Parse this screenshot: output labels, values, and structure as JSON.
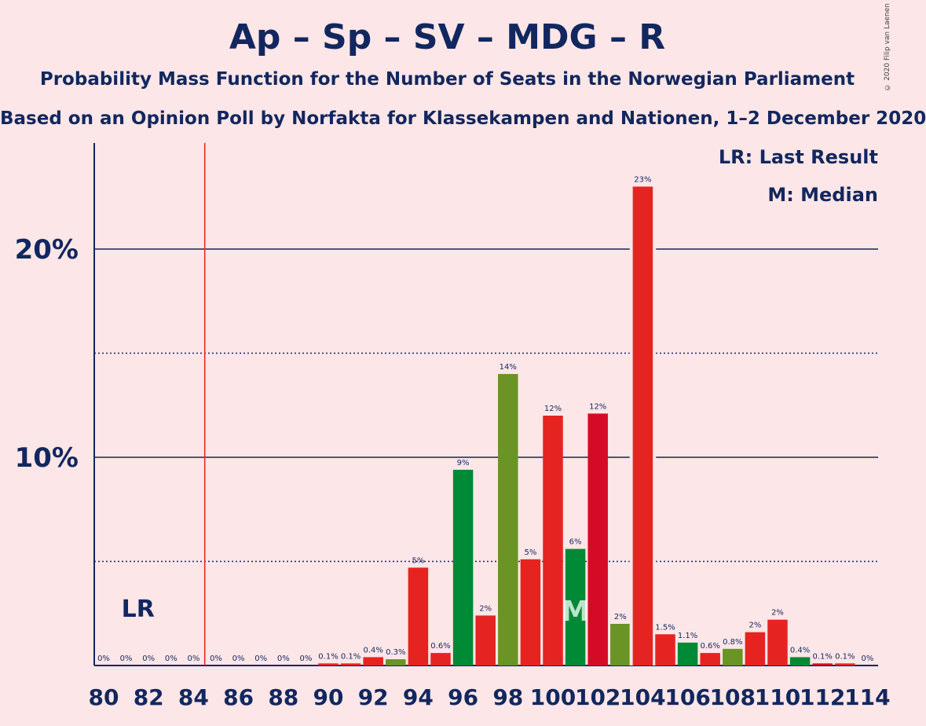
{
  "title": "Ap – Sp – SV – MDG – R",
  "subtitle": "Probability Mass Function for the Number of Seats in the Norwegian Parliament",
  "subtitle2": "Based on an Opinion Poll by Norfakta for Klassekampen and Nationen, 1–2 December 2020",
  "copyright": "© 2020 Filip van Laenen",
  "legend": {
    "lr": "LR: Last Result",
    "m": "M: Median"
  },
  "colors": {
    "background": "#fde6e7",
    "text": "#12275f",
    "red": "#e52421",
    "green": "#008a35",
    "olive": "#6a9426",
    "darkred": "#d50b25"
  },
  "chart_data": {
    "type": "bar",
    "ylabel": "",
    "xlabel": "",
    "ylim": [
      0,
      25
    ],
    "yticks": [
      10,
      20
    ],
    "ytick_labels": [
      "10%",
      "20%"
    ],
    "dotted_gridlines": [
      5,
      15
    ],
    "last_result": 85,
    "last_result_label": "LR",
    "median": 101,
    "median_label": "M",
    "x_tick_labels": [
      "80",
      "82",
      "84",
      "86",
      "88",
      "90",
      "92",
      "94",
      "96",
      "98",
      "100",
      "102",
      "104",
      "106",
      "108",
      "110",
      "112",
      "114"
    ],
    "seats": [
      80,
      81,
      82,
      83,
      84,
      85,
      86,
      87,
      88,
      89,
      90,
      91,
      92,
      93,
      94,
      95,
      96,
      97,
      98,
      99,
      100,
      101,
      102,
      103,
      104,
      105,
      106,
      107,
      108,
      109,
      110,
      111,
      112,
      113,
      114
    ],
    "values": [
      0,
      0,
      0,
      0,
      0,
      0,
      0,
      0,
      0,
      0,
      0.1,
      0.1,
      0.4,
      0.3,
      4.7,
      0.6,
      9.4,
      2.4,
      14.0,
      5.1,
      12.0,
      5.6,
      12.1,
      2.0,
      23.0,
      1.5,
      1.1,
      0.6,
      0.8,
      1.6,
      2.2,
      0.4,
      0.1,
      0.1,
      0
    ],
    "labels": [
      "0%",
      "0%",
      "0%",
      "0%",
      "0%",
      "0%",
      "0%",
      "0%",
      "0%",
      "0%",
      "0.1%",
      "0.1%",
      "0.4%",
      "0.3%",
      "5%",
      "0.6%",
      "9%",
      "2%",
      "14%",
      "5%",
      "12%",
      "6%",
      "12%",
      "2%",
      "23%",
      "1.5%",
      "1.1%",
      "0.6%",
      "0.8%",
      "2%",
      "2%",
      "0.4%",
      "0.1%",
      "0.1%",
      "0%"
    ],
    "bar_colors": [
      "#e52421",
      "#e52421",
      "#e52421",
      "#e52421",
      "#e52421",
      "#e52421",
      "#e52421",
      "#e52421",
      "#e52421",
      "#e52421",
      "#e52421",
      "#e52421",
      "#e52421",
      "#6a9426",
      "#e52421",
      "#e52421",
      "#008a35",
      "#e52421",
      "#6a9426",
      "#e52421",
      "#e52421",
      "#008a35",
      "#d50b25",
      "#6a9426",
      "#e52421",
      "#e52421",
      "#008a35",
      "#e52421",
      "#6a9426",
      "#e52421",
      "#e52421",
      "#008a35",
      "#d50b25",
      "#e52421",
      "#e52421"
    ]
  }
}
